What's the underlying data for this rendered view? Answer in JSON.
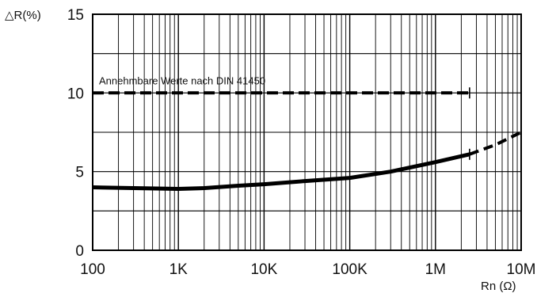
{
  "chart_data": {
    "type": "line",
    "ylabel": "△R(%)",
    "xlabel": "Rn (Ω)",
    "xscale": "log",
    "xlim": [
      100,
      10000000
    ],
    "ylim": [
      0,
      15
    ],
    "grid": true,
    "ticks": {
      "x": [
        {
          "value": 100,
          "label": "100"
        },
        {
          "value": 1000,
          "label": "1K"
        },
        {
          "value": 10000,
          "label": "10K"
        },
        {
          "value": 100000,
          "label": "100K"
        },
        {
          "value": 1000000,
          "label": "1M"
        },
        {
          "value": 10000000,
          "label": "10M"
        }
      ],
      "y": [
        {
          "value": 0,
          "label": "0"
        },
        {
          "value": 5,
          "label": "5"
        },
        {
          "value": 10,
          "label": "10"
        },
        {
          "value": 15,
          "label": "15"
        }
      ]
    },
    "series": [
      {
        "style": "solid-bold",
        "color": "#000000",
        "points": [
          {
            "x": 100,
            "y": 4.0
          },
          {
            "x": 300,
            "y": 3.95
          },
          {
            "x": 1000,
            "y": 3.9
          },
          {
            "x": 2000,
            "y": 3.95
          },
          {
            "x": 5000,
            "y": 4.1
          },
          {
            "x": 10000,
            "y": 4.2
          },
          {
            "x": 30000,
            "y": 4.4
          },
          {
            "x": 100000,
            "y": 4.6
          },
          {
            "x": 300000,
            "y": 5.0
          },
          {
            "x": 1000000,
            "y": 5.6
          },
          {
            "x": 2500000,
            "y": 6.1
          }
        ]
      },
      {
        "style": "dashed",
        "color": "#000000",
        "points": [
          {
            "x": 2500000,
            "y": 6.1
          },
          {
            "x": 5000000,
            "y": 6.7
          },
          {
            "x": 10000000,
            "y": 7.5
          }
        ]
      },
      {
        "style": "dashed-bold",
        "color": "#000000",
        "points": [
          {
            "x": 100,
            "y": 10
          },
          {
            "x": 2500000,
            "y": 10
          }
        ]
      }
    ],
    "annotations": [
      {
        "text": "Annehmbare Werte nach DIN 41450",
        "x": 100,
        "y": 10.5
      }
    ],
    "markers": [
      {
        "x": 2500000,
        "y": 10
      },
      {
        "x": 2500000,
        "y": 6.1
      }
    ]
  }
}
